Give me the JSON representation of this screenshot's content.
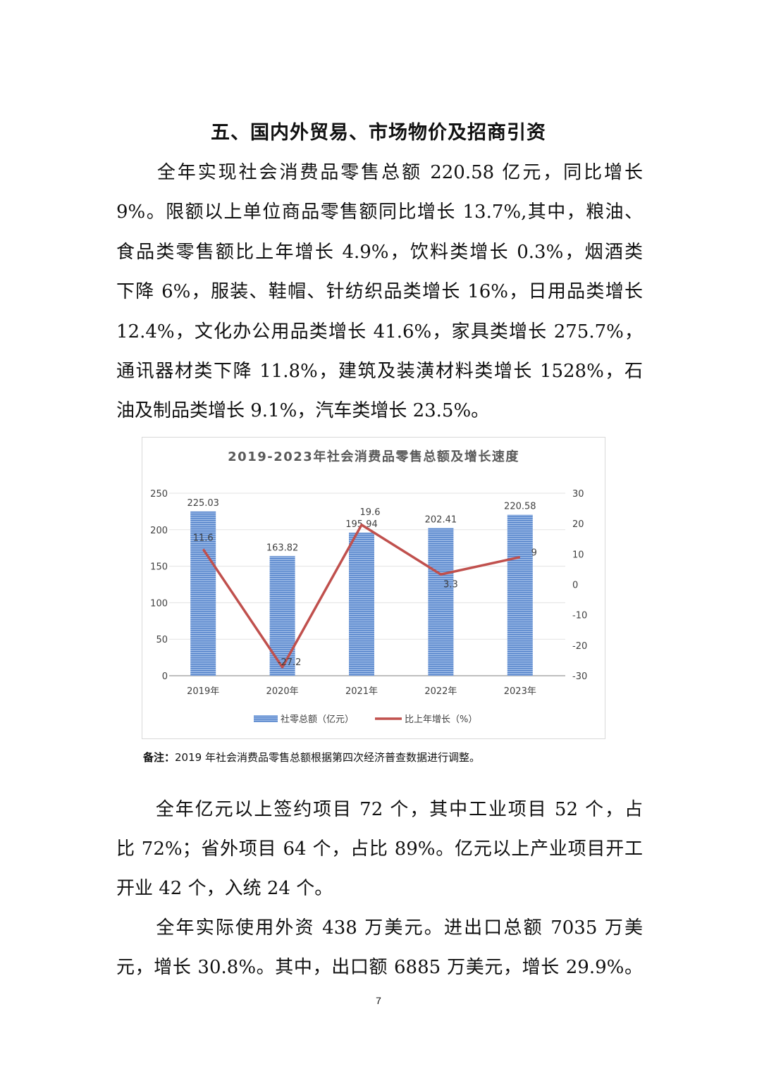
{
  "heading": "五、国内外贸易、市场物价及招商引资",
  "paragraph1": [
    "　　全年实现社会消费品零售总额 220.58 亿元，同比增长",
    "9%。限额以上单位商品零售额同比增长 13.7%,其中，粮油、",
    "食品类零售额比上年增长 4.9%，饮料类增长 0.3%，烟酒类",
    "下降 6%，服装、鞋帽、针纺织品类增长 16%，日用品类增长",
    "12.4%，文化办公用品类增长 41.6%，家具类增长 275.7%，",
    "通讯器材类下降 11.8%，建筑及装潢材料类增长 1528%，石",
    "油及制品类增长 9.1%，汽车类增长 23.5%。"
  ],
  "chart_data": {
    "type": "bar+line",
    "title": "2019-2023年社会消费品零售总额及增长速度",
    "categories": [
      "2019年",
      "2020年",
      "2021年",
      "2022年",
      "2023年"
    ],
    "series": [
      {
        "name": "社零总额（亿元）",
        "type": "bar",
        "axis": "left",
        "values": [
          225.03,
          163.82,
          195.94,
          202.41,
          220.58
        ],
        "labels": [
          "225.03",
          "163.82",
          "195.94",
          "202.41",
          "220.58"
        ],
        "color": "#5b8bd0"
      },
      {
        "name": "比上年增长（%）",
        "type": "line",
        "axis": "right",
        "values": [
          11.6,
          -27.2,
          19.6,
          3.3,
          9
        ],
        "labels": [
          "11.6",
          "-27.2",
          "19.6",
          "3.3",
          "9"
        ],
        "color": "#c0504d"
      }
    ],
    "left_axis": {
      "range": [
        0,
        250
      ],
      "ticks": [
        "0",
        "50",
        "100",
        "150",
        "200",
        "250"
      ]
    },
    "right_axis": {
      "range": [
        -30,
        30
      ],
      "ticks": [
        "-30",
        "-20",
        "-10",
        "0",
        "10",
        "20",
        "30"
      ]
    },
    "grid": true,
    "legend": "bottom"
  },
  "note": {
    "label": "备注：",
    "text": "2019 年社会消费品零售总额根据第四次经济普查数据进行调整。"
  },
  "paragraph2": [
    "　　全年亿元以上签约项目 72 个，其中工业项目 52 个，占",
    "比 72%；省外项目 64 个，占比 89%。亿元以上产业项目开工",
    "开业 42 个，入统 24 个。"
  ],
  "paragraph3": [
    "　　全年实际使用外资 438 万美元。进出口总额 7035 万美",
    "元，增长 30.8%。其中，出口额 6885 万美元，增长 29.9%。"
  ],
  "page_number": "7"
}
